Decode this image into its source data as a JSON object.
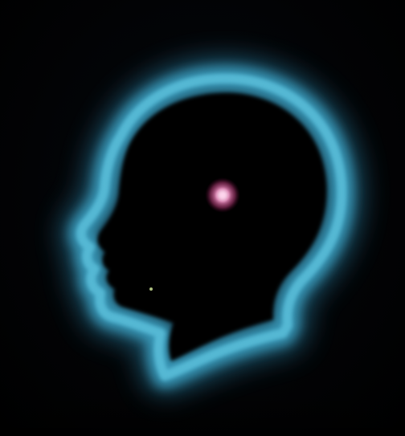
{
  "scene": {
    "subject": "head-silhouette",
    "background_color": "#000000",
    "aura_color": "#3fa7c9",
    "aura_inner_color": "#5fc4df",
    "silhouette_color": "#010103",
    "spot_color": "#ff7fc0",
    "spot_core_color": "#ffd6ee",
    "fleck_color": "#d8f0a0"
  }
}
